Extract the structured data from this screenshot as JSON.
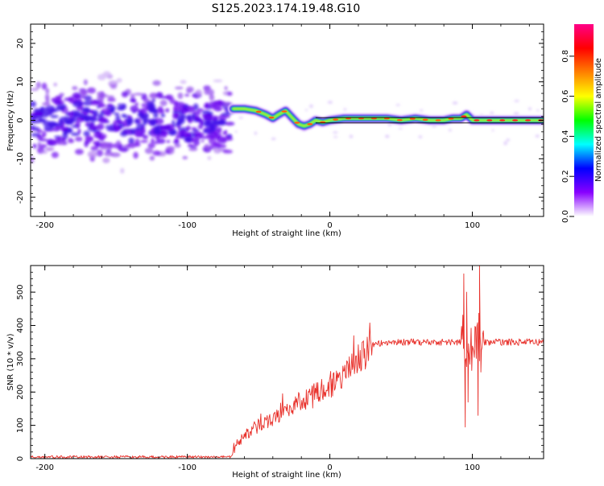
{
  "title": "S125.2023.174.19.48.G10",
  "chart_data": [
    {
      "type": "heatmap",
      "xlabel": "Height of straight line (km)",
      "ylabel": "Frequency (Hz)",
      "xlim": [
        -210,
        150
      ],
      "ylim": [
        -25,
        25
      ],
      "x_ticks": [
        "-200",
        "-100",
        "0",
        "100"
      ],
      "y_ticks": [
        "-20",
        "-10",
        "0",
        "10",
        "20"
      ],
      "colorbar": {
        "label": "Normalized spectral amplitude",
        "range": [
          0,
          0.96
        ],
        "ticks": [
          "0.0",
          "0.2",
          "0.4",
          "0.6",
          "0.8"
        ],
        "stops": [
          "#ffffff",
          "#8800ff",
          "#0000ff",
          "#00ffff",
          "#00ff00",
          "#ffff00",
          "#ff8000",
          "#ff0000",
          "#ff0088"
        ]
      },
      "noise_region": {
        "x": [
          -210,
          -70
        ],
        "y": [
          -25,
          25
        ]
      },
      "signal_trace": {
        "x": [
          -68,
          -60,
          -52,
          -45,
          -40,
          -36,
          -31,
          -26,
          -22,
          -18,
          -14,
          -10,
          -5,
          0,
          10,
          20,
          30,
          40,
          50,
          60,
          70,
          80,
          86,
          92,
          96,
          100,
          110,
          120,
          130,
          140,
          150
        ],
        "y": [
          3,
          3,
          2.5,
          1.5,
          0.5,
          1.5,
          2.5,
          0.5,
          -1,
          -1.5,
          -1,
          0,
          -0.5,
          0,
          0.5,
          0.5,
          0.5,
          0.5,
          0,
          0.5,
          0,
          0,
          0.5,
          0.5,
          1.5,
          0,
          0,
          0,
          0,
          0,
          0
        ]
      },
      "reference_line": {
        "y": [
          0.7,
          -0.7
        ]
      }
    },
    {
      "type": "line",
      "xlabel": "Height of straight line (km)",
      "ylabel": "SNR (10 * v/v)",
      "xlim": [
        -210,
        150
      ],
      "ylim": [
        0,
        580
      ],
      "x_ticks": [
        "-200",
        "-100",
        "0",
        "100"
      ],
      "y_ticks": [
        "0",
        "100",
        "200",
        "300",
        "400",
        "500"
      ],
      "color": "#e8302a",
      "envelope": {
        "x": [
          -210,
          -70,
          -65,
          -60,
          -50,
          -40,
          -30,
          -20,
          -10,
          0,
          10,
          20,
          30,
          40,
          60,
          80,
          93,
          100,
          110,
          130,
          150
        ],
        "y": [
          5,
          5,
          40,
          70,
          95,
          120,
          150,
          175,
          195,
          215,
          250,
          300,
          340,
          350,
          350,
          350,
          350,
          350,
          350,
          350,
          350
        ]
      },
      "spikes": [
        {
          "x": 94,
          "y": 555
        },
        {
          "x": 95,
          "y": 95
        },
        {
          "x": 96,
          "y": 500
        },
        {
          "x": 97,
          "y": 170
        },
        {
          "x": 104,
          "y": 130
        },
        {
          "x": 105,
          "y": 580
        },
        {
          "x": 106,
          "y": 260
        }
      ]
    }
  ]
}
